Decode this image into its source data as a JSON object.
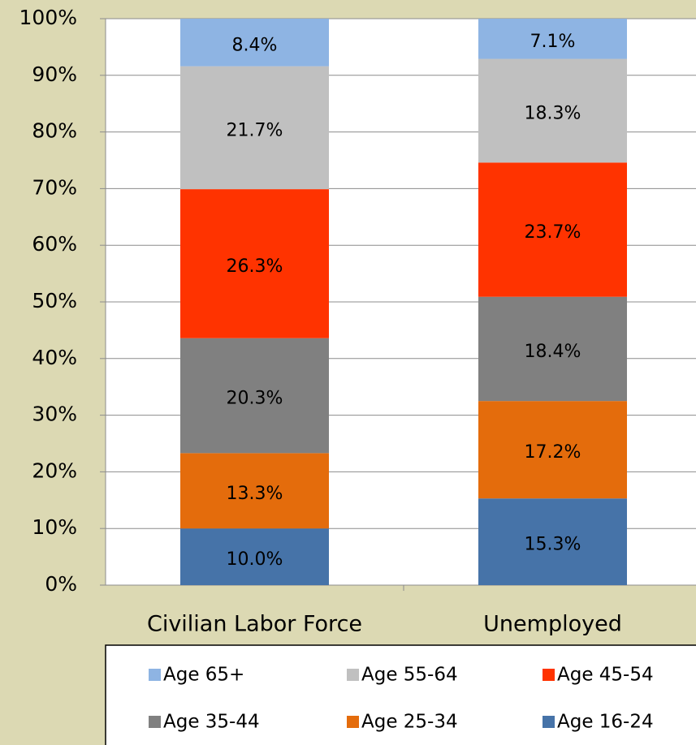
{
  "chart_data": {
    "type": "stacked_bar_percent",
    "categories": [
      "Civilian Labor Force",
      "Unemployed"
    ],
    "series": [
      {
        "name": "Age 16-24",
        "color": "#4673a8",
        "values": [
          10,
          15.3
        ],
        "value_labels": [
          "10.0%",
          "15.3%"
        ]
      },
      {
        "name": "Age 25-34",
        "color": "#e46c0c",
        "values": [
          13.3,
          17.2
        ],
        "value_labels": [
          "13.3%",
          "17.2%"
        ]
      },
      {
        "name": "Age 35-44",
        "color": "#808080",
        "values": [
          20.3,
          18.4
        ],
        "value_labels": [
          "20.3%",
          "18.4%"
        ]
      },
      {
        "name": "Age 45-54",
        "color": "#ff3300",
        "values": [
          26.3,
          23.7
        ],
        "value_labels": [
          "26.3%",
          "23.7%"
        ]
      },
      {
        "name": "Age 55-64",
        "color": "#c0c0c0",
        "values": [
          21.7,
          18.3
        ],
        "value_labels": [
          "21.7%",
          "18.3%"
        ]
      },
      {
        "name": "Age 65+",
        "color": "#8eb4e3",
        "values": [
          8.4,
          7.1
        ],
        "value_labels": [
          "8.4%",
          "7.1%"
        ]
      }
    ],
    "ylim": [
      0,
      100
    ],
    "yticks": [
      {
        "value": 0,
        "label": "0%"
      },
      {
        "value": 10,
        "label": "10%"
      },
      {
        "value": 20,
        "label": "20%"
      },
      {
        "value": 30,
        "label": "30%"
      },
      {
        "value": 40,
        "label": "40%"
      },
      {
        "value": 50,
        "label": "50%"
      },
      {
        "value": 60,
        "label": "60%"
      },
      {
        "value": 70,
        "label": "70%"
      },
      {
        "value": 80,
        "label": "80%"
      },
      {
        "value": 90,
        "label": "90%"
      },
      {
        "value": 100,
        "label": "100%"
      }
    ],
    "grid": true,
    "legend": "bottom"
  }
}
